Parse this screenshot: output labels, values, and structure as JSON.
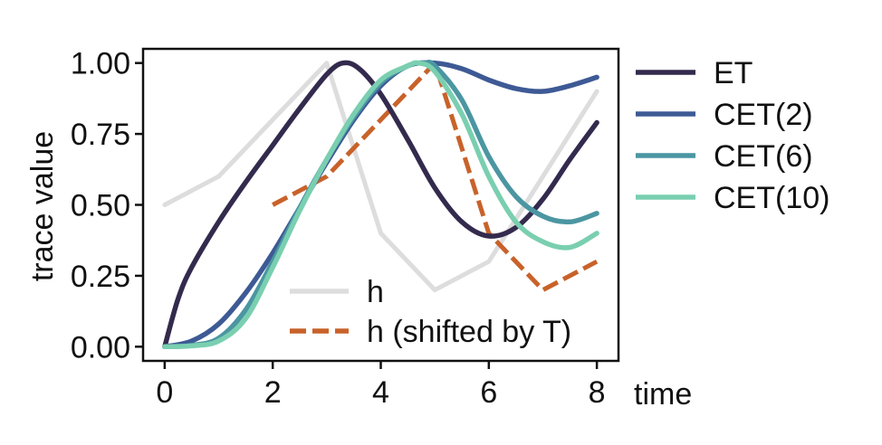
{
  "chart_data": {
    "type": "line",
    "xlabel": "time",
    "ylabel": "trace value",
    "xlim": [
      -0.4,
      8.4
    ],
    "ylim": [
      -0.05,
      1.05
    ],
    "xticks": [
      0,
      2,
      4,
      6,
      8
    ],
    "xtick_labels": [
      "0",
      "2",
      "4",
      "6",
      "8"
    ],
    "yticks": [
      0.0,
      0.25,
      0.5,
      0.75,
      1.0
    ],
    "ytick_labels": [
      "0.00",
      "0.25",
      "0.50",
      "0.75",
      "1.00"
    ],
    "series": [
      {
        "name": "h",
        "color": "#dddddd",
        "style": "solid",
        "legend": "inner",
        "x": [
          0,
          1,
          2,
          3,
          4,
          5,
          6,
          7,
          8
        ],
        "y": [
          0.5,
          0.6,
          0.8,
          1.0,
          0.4,
          0.2,
          0.3,
          0.6,
          0.9
        ]
      },
      {
        "name": "h (shifted by T)",
        "color": "#c8622a",
        "style": "dashed",
        "legend": "inner",
        "x": [
          2,
          3,
          4,
          5,
          6,
          7,
          8
        ],
        "y": [
          0.5,
          0.6,
          0.8,
          1.0,
          0.4,
          0.2,
          0.3
        ]
      },
      {
        "name": "ET",
        "color": "#342a4d",
        "style": "solid",
        "legend": "outer",
        "x": [
          0,
          0.25,
          0.5,
          1,
          1.5,
          2,
          2.5,
          3,
          3.3,
          3.6,
          4,
          4.5,
          5,
          5.5,
          6,
          6.5,
          7,
          7.5,
          8
        ],
        "y": [
          0.0,
          0.17,
          0.28,
          0.44,
          0.58,
          0.71,
          0.84,
          0.96,
          1.0,
          0.98,
          0.89,
          0.73,
          0.56,
          0.44,
          0.39,
          0.42,
          0.52,
          0.66,
          0.79
        ]
      },
      {
        "name": "CET(2)",
        "color": "#3e5a95",
        "style": "solid",
        "legend": "outer",
        "x": [
          0,
          0.5,
          1,
          1.5,
          2,
          2.5,
          3,
          3.5,
          4,
          4.5,
          5,
          5.5,
          6,
          6.5,
          7,
          7.5,
          8
        ],
        "y": [
          0.0,
          0.02,
          0.08,
          0.19,
          0.33,
          0.49,
          0.65,
          0.8,
          0.92,
          0.99,
          1.0,
          0.98,
          0.94,
          0.91,
          0.9,
          0.92,
          0.95
        ]
      },
      {
        "name": "CET(6)",
        "color": "#4b96a2",
        "style": "solid",
        "legend": "outer",
        "x": [
          0,
          0.5,
          1,
          1.5,
          2,
          2.5,
          3,
          3.5,
          4,
          4.5,
          4.8,
          5,
          5.5,
          6,
          6.5,
          7,
          7.5,
          8
        ],
        "y": [
          0.0,
          0.005,
          0.03,
          0.13,
          0.3,
          0.49,
          0.66,
          0.81,
          0.93,
          0.99,
          1.0,
          0.99,
          0.87,
          0.67,
          0.53,
          0.46,
          0.44,
          0.47
        ]
      },
      {
        "name": "CET(10)",
        "color": "#7acfb0",
        "style": "solid",
        "legend": "outer",
        "x": [
          0,
          0.5,
          1,
          1.5,
          2,
          2.5,
          3,
          3.5,
          4,
          4.5,
          4.7,
          5,
          5.5,
          6,
          6.5,
          7,
          7.5,
          8
        ],
        "y": [
          0.0,
          0.003,
          0.02,
          0.1,
          0.28,
          0.48,
          0.66,
          0.82,
          0.94,
          0.99,
          1.0,
          0.97,
          0.82,
          0.6,
          0.44,
          0.37,
          0.35,
          0.4
        ]
      }
    ]
  }
}
